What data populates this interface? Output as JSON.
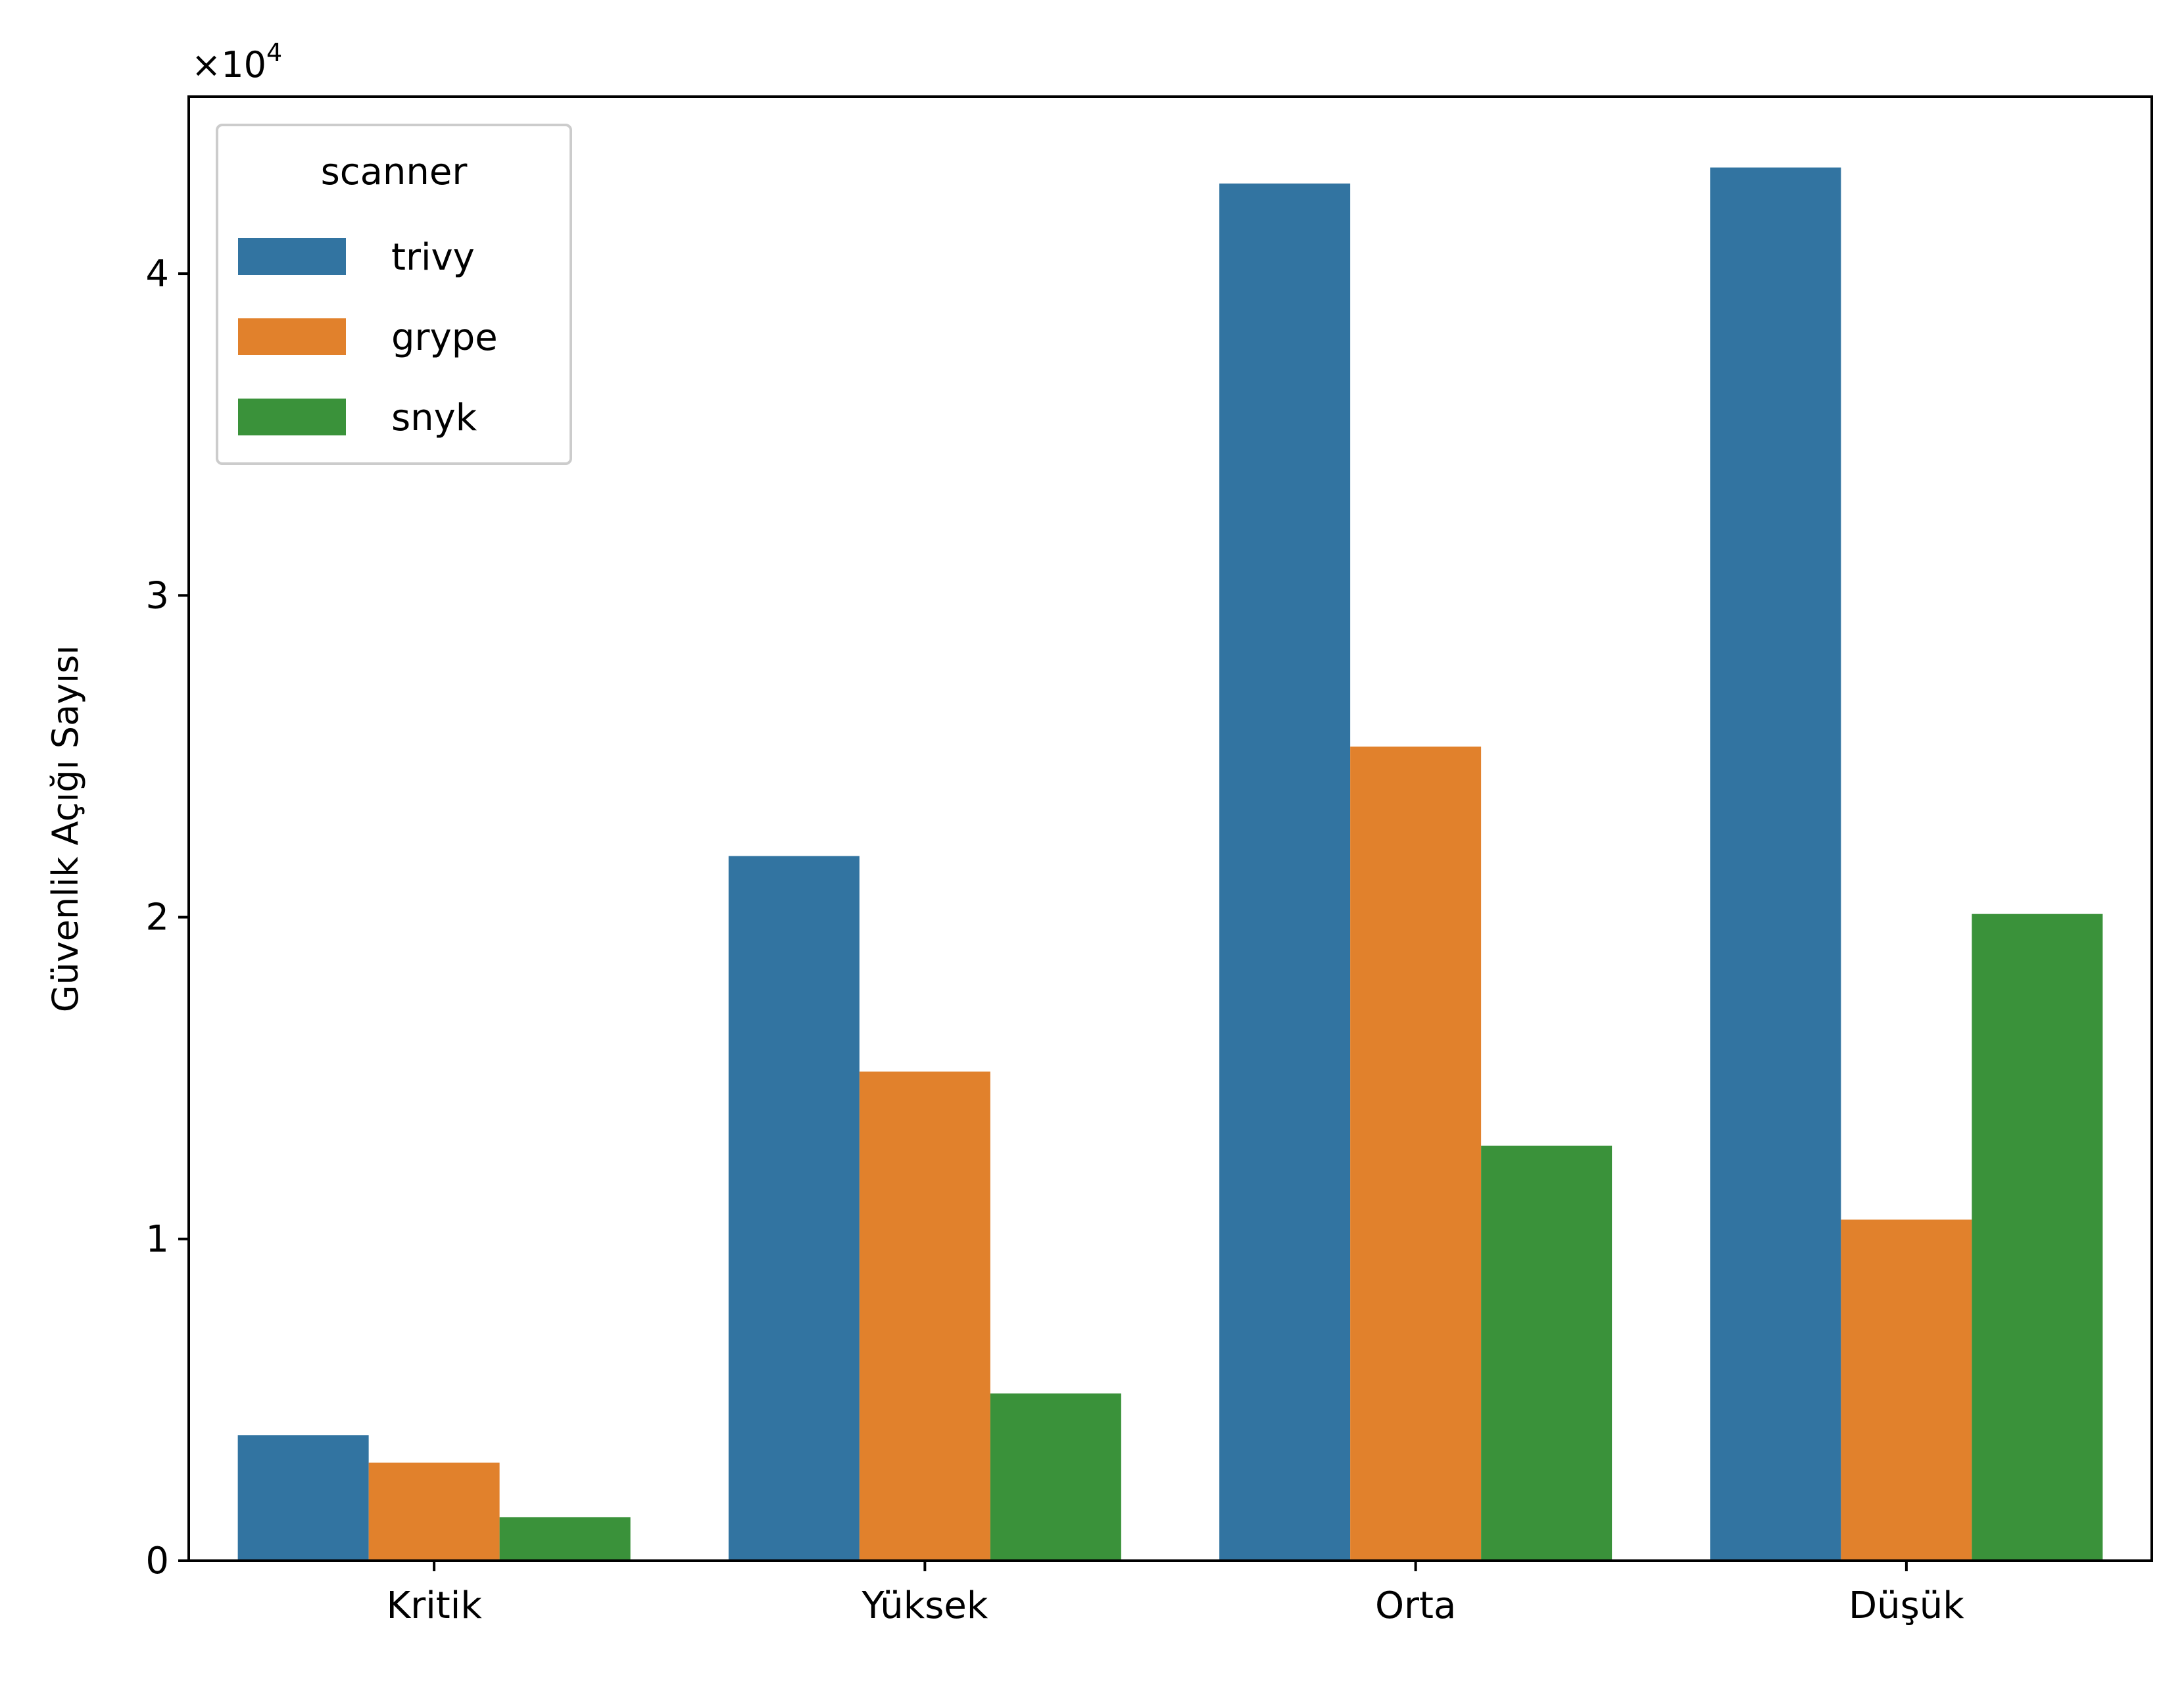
{
  "chart_data": {
    "type": "bar",
    "title": "",
    "xlabel": "",
    "ylabel": "Güvenlik Açığı Sayısı",
    "y_offset_label": "×10",
    "y_offset_exponent": "4",
    "y_scale_factor": 10000,
    "ylim": [
      0,
      45500
    ],
    "yticks": [
      0,
      10000,
      20000,
      30000,
      40000
    ],
    "ytick_labels": [
      "0",
      "1",
      "2",
      "3",
      "4"
    ],
    "grid": false,
    "categories": [
      "Kritik",
      "Yüksek",
      "Orta",
      "Düşük"
    ],
    "legend": {
      "title": "scanner",
      "placement": "top-left"
    },
    "series": [
      {
        "name": "trivy",
        "color": "#3274a1",
        "values": [
          3900,
          21900,
          42800,
          43300
        ]
      },
      {
        "name": "grype",
        "color": "#e1812c",
        "values": [
          3050,
          15200,
          25300,
          10600
        ]
      },
      {
        "name": "snyk",
        "color": "#3a923a",
        "values": [
          1350,
          5200,
          12900,
          20100
        ]
      }
    ]
  }
}
